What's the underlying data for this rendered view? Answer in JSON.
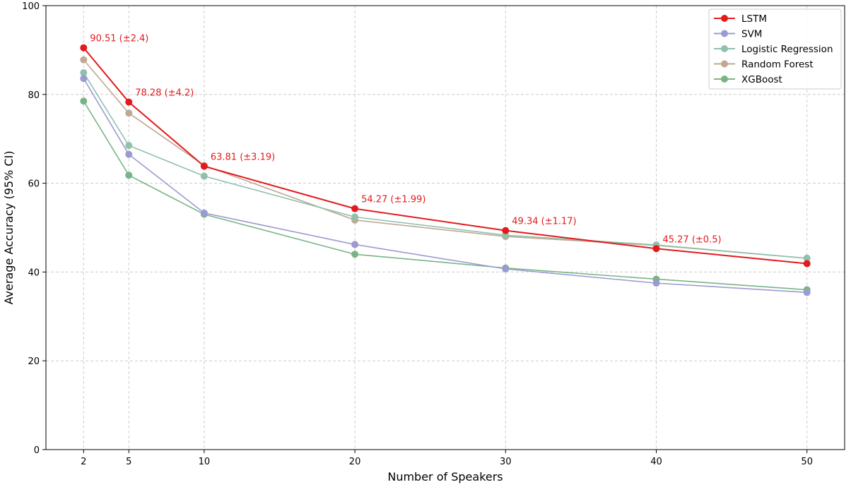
{
  "chart_data": {
    "type": "line",
    "title": "",
    "xlabel": "Number of Speakers",
    "ylabel": "Average Accuracy (95% CI)",
    "x": [
      2,
      5,
      10,
      20,
      30,
      40,
      50
    ],
    "xticks": [
      "2",
      "5",
      "10",
      "20",
      "30",
      "40",
      "50"
    ],
    "xlim": [
      -0.5,
      52.5
    ],
    "ylim": [
      0,
      100
    ],
    "yticks": [
      "0",
      "20",
      "40",
      "60",
      "80",
      "100"
    ],
    "grid": true,
    "legend_position": "top-right",
    "series": [
      {
        "name": "LSTM",
        "color": "#e31a1c",
        "values": [
          90.51,
          78.28,
          63.81,
          54.27,
          49.34,
          45.27,
          41.9
        ]
      },
      {
        "name": "SVM",
        "color": "#9b9bd1",
        "values": [
          83.6,
          66.5,
          53.3,
          46.2,
          40.7,
          37.5,
          35.4
        ]
      },
      {
        "name": "Logistic Regression",
        "color": "#8fc1ab",
        "values": [
          84.9,
          68.5,
          61.6,
          52.4,
          48.3,
          46.1,
          43.1
        ]
      },
      {
        "name": "Random Forest",
        "color": "#bfa994",
        "values": [
          87.8,
          75.8,
          64.0,
          51.7,
          48.0,
          46.0,
          43.1
        ]
      },
      {
        "name": "XGBoost",
        "color": "#78b485",
        "values": [
          78.5,
          61.8,
          53.0,
          44.0,
          40.9,
          38.4,
          36.0
        ]
      }
    ],
    "annotations": [
      {
        "x": 2,
        "y": 90.51,
        "text": "90.51 (±2.4)"
      },
      {
        "x": 5,
        "y": 78.28,
        "text": "78.28 (±4.2)"
      },
      {
        "x": 10,
        "y": 63.81,
        "text": "63.81 (±3.19)"
      },
      {
        "x": 20,
        "y": 54.27,
        "text": "54.27 (±1.99)"
      },
      {
        "x": 30,
        "y": 49.34,
        "text": "49.34 (±1.17)"
      },
      {
        "x": 40,
        "y": 45.27,
        "text": "45.27 (±0.5)"
      }
    ],
    "annotation_color": "#e31a1c"
  }
}
